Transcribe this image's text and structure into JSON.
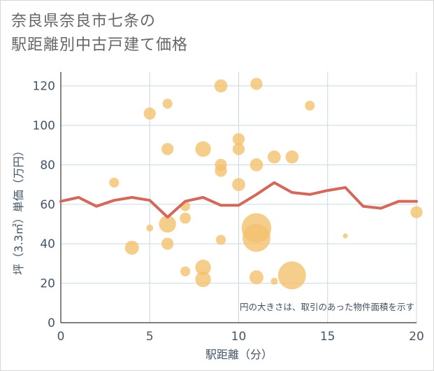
{
  "title": {
    "line1": "奈良県奈良市七条の",
    "line2": "駅距離別中古戸建て価格"
  },
  "chart_data": {
    "type": "scatter",
    "xlabel": "駅距離（分）",
    "ylabel": "坪（3.3㎡）単価（万円）",
    "xlim": [
      0,
      20
    ],
    "ylim": [
      0,
      127
    ],
    "xticks": [
      "0",
      "5",
      "10",
      "15",
      "20"
    ],
    "yticks": [
      "0",
      "20",
      "40",
      "60",
      "80",
      "100",
      "120"
    ],
    "xtick_values": [
      0,
      5,
      10,
      15,
      20
    ],
    "ytick_values": [
      0,
      20,
      40,
      60,
      80,
      100,
      120
    ],
    "grid": true,
    "annotation": "円の大きさは、取引のあった物件面積を示す",
    "colors": {
      "bubble": "#f3c06c",
      "line": "#d2695a",
      "grid": "#c9d9e3",
      "axis_text": "#445566"
    },
    "bubbles": [
      {
        "x": 3,
        "y": 71,
        "size": 2
      },
      {
        "x": 4,
        "y": 38,
        "size": 4
      },
      {
        "x": 5,
        "y": 106,
        "size": 3
      },
      {
        "x": 5,
        "y": 48,
        "size": 1
      },
      {
        "x": 6,
        "y": 111,
        "size": 2
      },
      {
        "x": 6,
        "y": 88,
        "size": 3
      },
      {
        "x": 6,
        "y": 50,
        "size": 6
      },
      {
        "x": 6,
        "y": 40,
        "size": 3
      },
      {
        "x": 7,
        "y": 59,
        "size": 2
      },
      {
        "x": 7,
        "y": 53,
        "size": 2.5
      },
      {
        "x": 7,
        "y": 26,
        "size": 2
      },
      {
        "x": 8,
        "y": 88,
        "size": 5
      },
      {
        "x": 8,
        "y": 28,
        "size": 5
      },
      {
        "x": 8,
        "y": 22,
        "size": 5
      },
      {
        "x": 9,
        "y": 120,
        "size": 3.5
      },
      {
        "x": 9,
        "y": 80,
        "size": 3
      },
      {
        "x": 9,
        "y": 77,
        "size": 3
      },
      {
        "x": 9,
        "y": 42,
        "size": 2
      },
      {
        "x": 10,
        "y": 93,
        "size": 3
      },
      {
        "x": 10,
        "y": 88,
        "size": 3
      },
      {
        "x": 10,
        "y": 70,
        "size": 3.5
      },
      {
        "x": 11,
        "y": 121,
        "size": 3
      },
      {
        "x": 11,
        "y": 80,
        "size": 3.5
      },
      {
        "x": 11,
        "y": 48,
        "size": 18
      },
      {
        "x": 11,
        "y": 43,
        "size": 16
      },
      {
        "x": 11,
        "y": 23,
        "size": 4
      },
      {
        "x": 12,
        "y": 84,
        "size": 3.5
      },
      {
        "x": 12,
        "y": 21,
        "size": 1
      },
      {
        "x": 13,
        "y": 84,
        "size": 3.5
      },
      {
        "x": 13,
        "y": 24,
        "size": 16
      },
      {
        "x": 14,
        "y": 110,
        "size": 2
      },
      {
        "x": 16,
        "y": 44,
        "size": 0.5
      },
      {
        "x": 20,
        "y": 56,
        "size": 3
      }
    ],
    "line": {
      "x": [
        0,
        1,
        2,
        3,
        4,
        5,
        6,
        7,
        8,
        9,
        10,
        11,
        12,
        13,
        14,
        15,
        16,
        17,
        18,
        19,
        20
      ],
      "y": [
        61.5,
        63.5,
        59,
        62,
        63.5,
        62,
        53.5,
        61.5,
        63.5,
        59.5,
        59.5,
        65,
        71,
        66,
        65,
        67,
        68.5,
        59,
        58,
        61.5,
        61.5
      ]
    }
  }
}
